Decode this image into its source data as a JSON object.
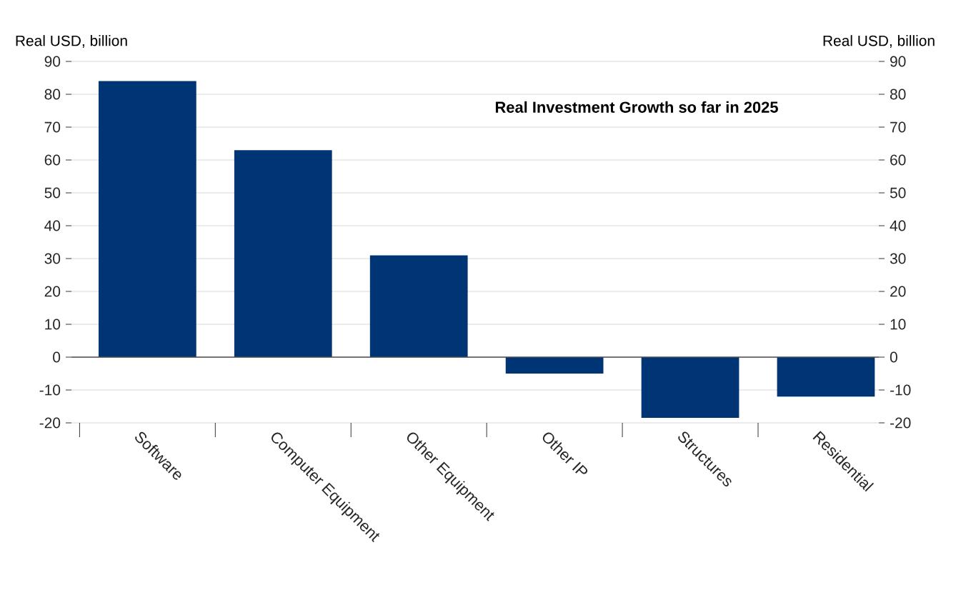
{
  "chart_data": {
    "type": "bar",
    "title": "Real Investment Growth so far in 2025",
    "ylabel": "Real USD, billion",
    "y2label": "Real USD, billion",
    "categories": [
      "Software",
      "Computer Equipment",
      "Other Equipment",
      "Other IP",
      "Structures",
      "Residential"
    ],
    "values": [
      84,
      63,
      31,
      -5,
      -18.5,
      -12
    ],
    "color": "#003575",
    "ylim": [
      -20,
      90
    ],
    "yticks": [
      -20,
      -10,
      0,
      10,
      20,
      30,
      40,
      50,
      60,
      70,
      80,
      90
    ],
    "y2lim": [
      -20,
      90
    ],
    "y2ticks": [
      -20,
      -10,
      0,
      10,
      20,
      30,
      40,
      50,
      60,
      70,
      80,
      90
    ],
    "grid": "y"
  }
}
